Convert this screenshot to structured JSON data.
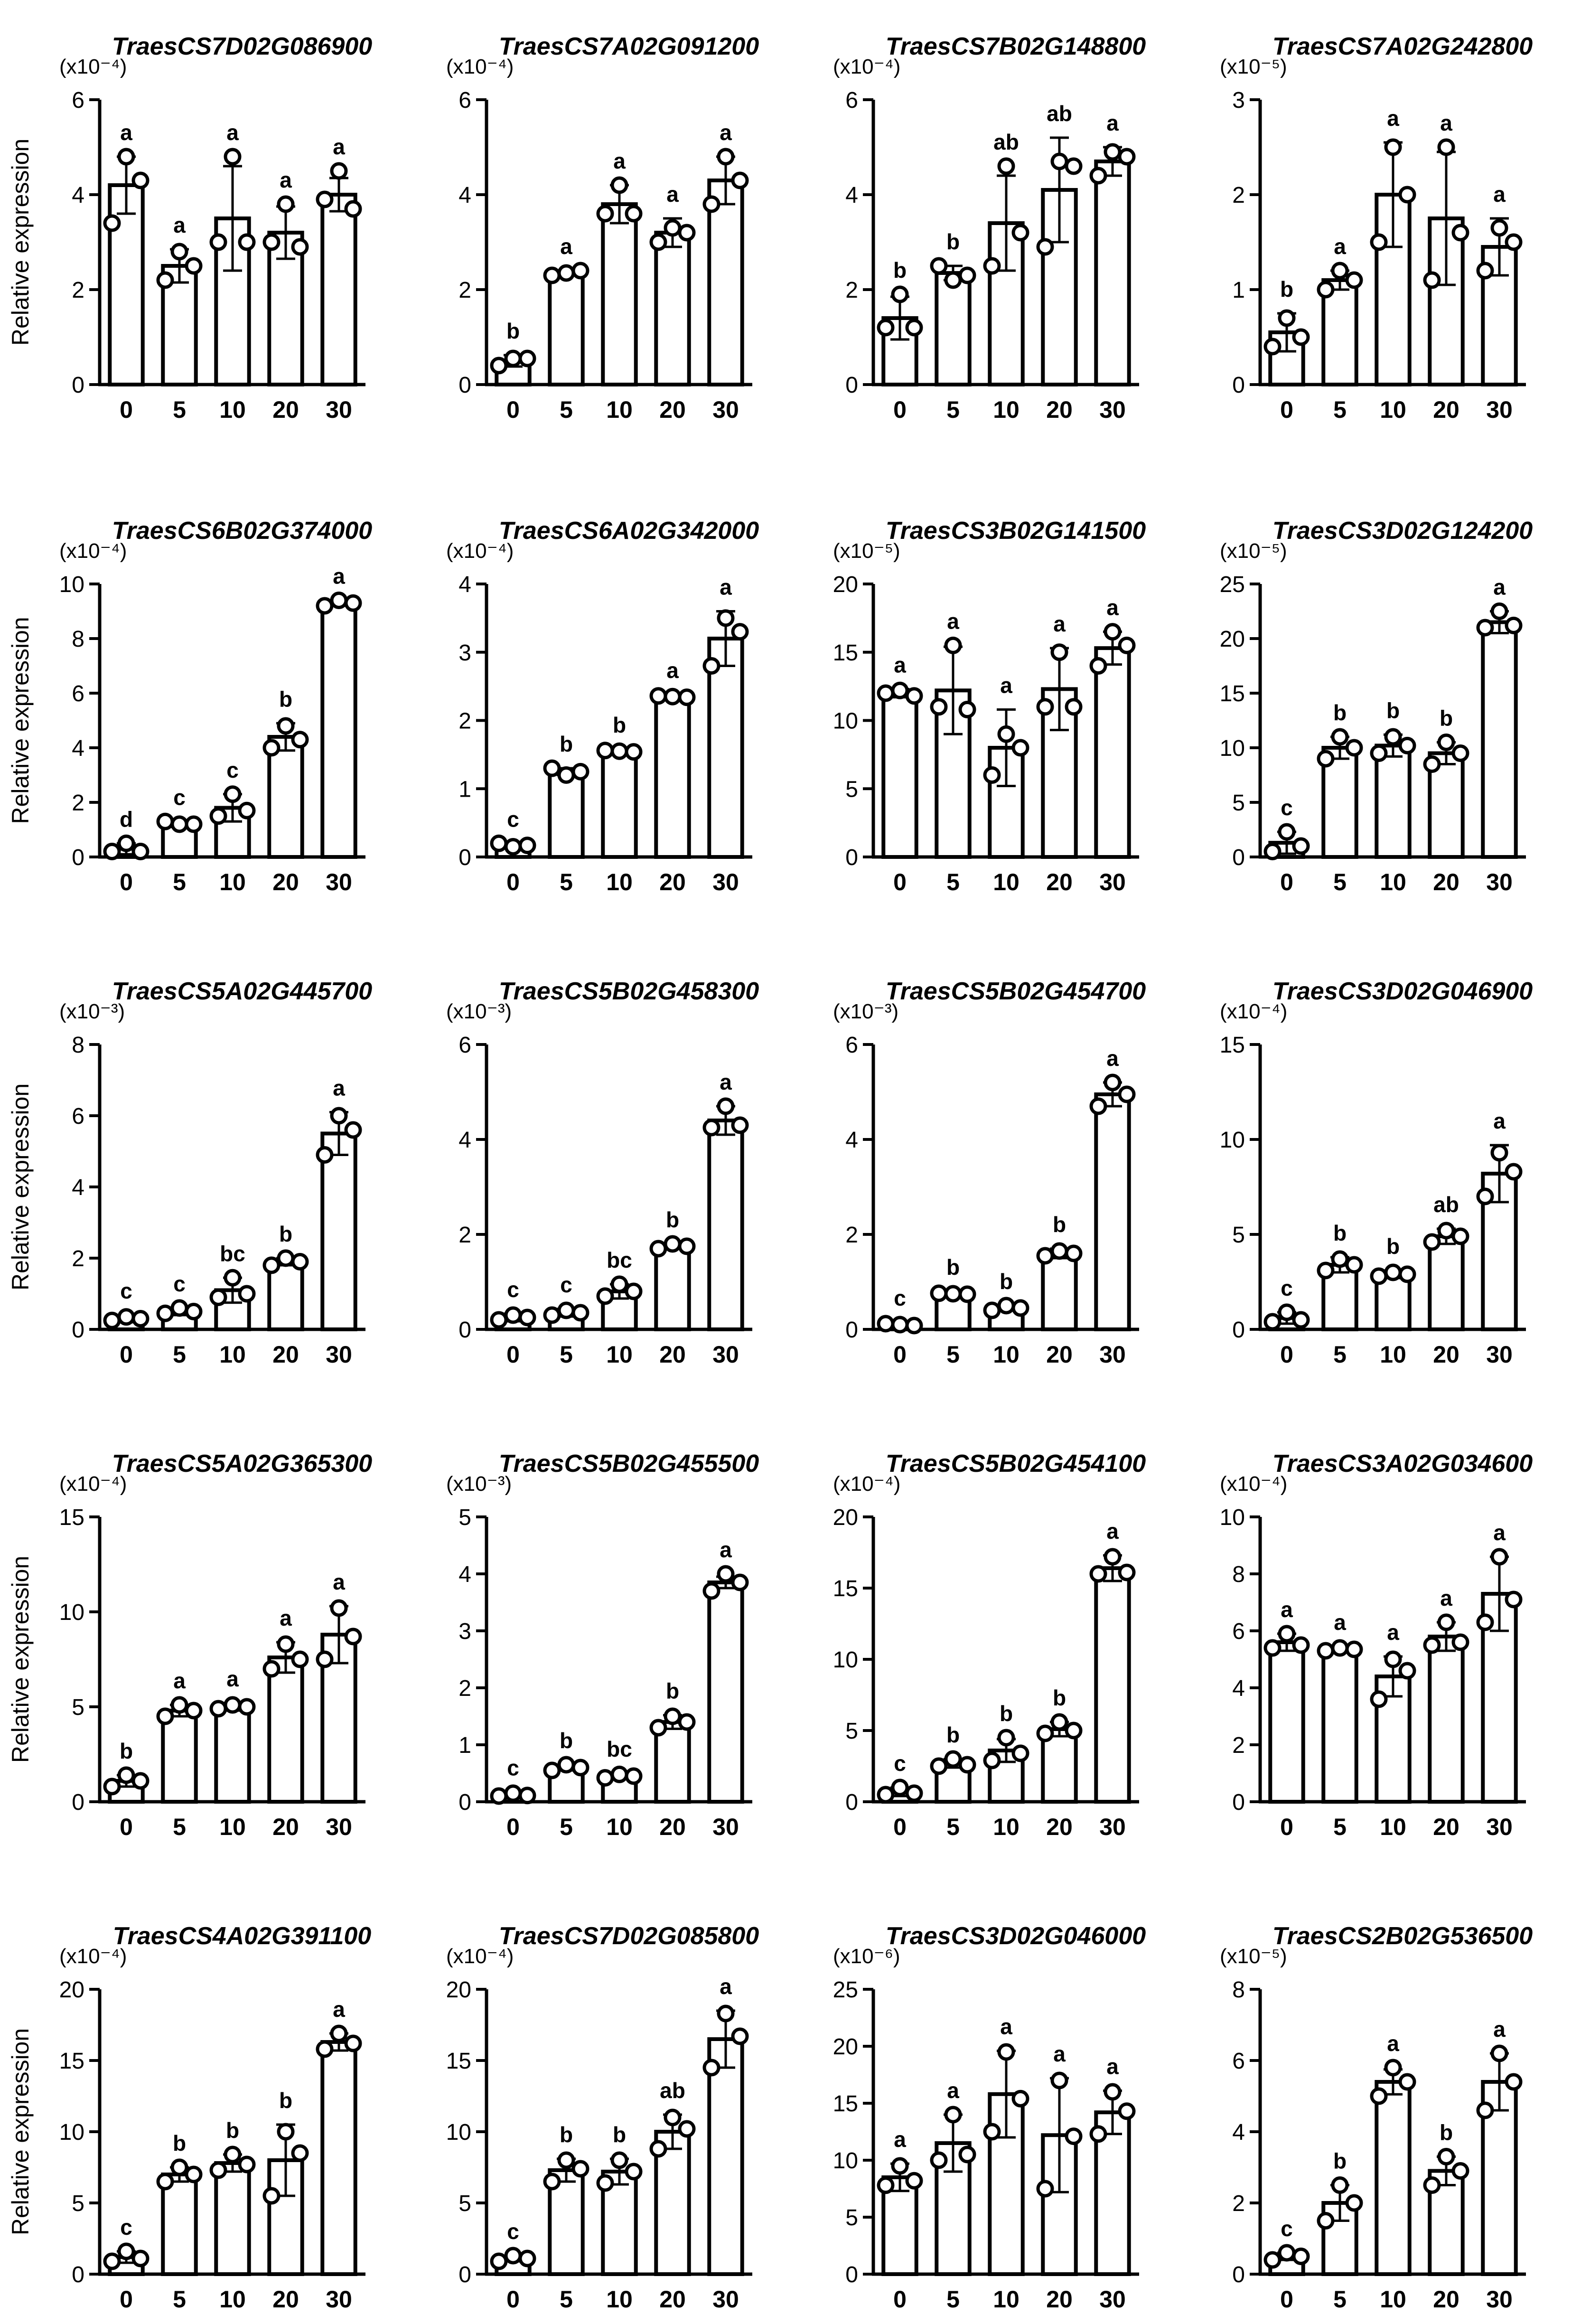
{
  "figure": {
    "ylabel": "Relative expression",
    "colors": {
      "ink": "#000000",
      "bar_fill": "#ffffff",
      "point_fill": "#ffffff"
    }
  },
  "chart_data": [
    {
      "type": "bar",
      "title": "TraesCS7D02G086900",
      "scale": "(x10⁻⁴)",
      "ylabel": "Relative expression",
      "ylim": [
        0,
        6
      ],
      "yticks": [
        0,
        2,
        4,
        6
      ],
      "categories": [
        "0",
        "5",
        "10",
        "20",
        "30"
      ],
      "values": [
        4.2,
        2.5,
        3.5,
        3.2,
        4.0
      ],
      "errors": [
        0.6,
        0.35,
        1.1,
        0.55,
        0.35
      ],
      "points": [
        [
          4.8,
          3.4,
          4.3
        ],
        [
          2.8,
          2.2,
          2.5
        ],
        [
          4.8,
          3.0,
          3.0
        ],
        [
          3.8,
          3.0,
          2.9
        ],
        [
          4.5,
          3.9,
          3.7
        ]
      ],
      "letters": [
        "a",
        "a",
        "a",
        "a",
        "a"
      ]
    },
    {
      "type": "bar",
      "title": "TraesCS7A02G091200",
      "scale": "(x10⁻⁴)",
      "ylabel": "",
      "ylim": [
        0,
        6
      ],
      "yticks": [
        0,
        2,
        4,
        6
      ],
      "categories": [
        "0",
        "5",
        "10",
        "20",
        "30"
      ],
      "values": [
        0.5,
        2.35,
        3.8,
        3.2,
        4.3
      ],
      "errors": [
        0.12,
        0.05,
        0.4,
        0.3,
        0.5
      ],
      "points": [
        [
          0.55,
          0.4,
          0.55
        ],
        [
          2.35,
          2.3,
          2.4
        ],
        [
          4.2,
          3.6,
          3.6
        ],
        [
          3.3,
          3.0,
          3.2
        ],
        [
          4.8,
          3.8,
          4.3
        ]
      ],
      "letters": [
        "b",
        "a",
        "a",
        "a",
        "a"
      ]
    },
    {
      "type": "bar",
      "title": "TraesCS7B02G148800",
      "scale": "(x10⁻⁴)",
      "ylabel": "",
      "ylim": [
        0,
        6
      ],
      "yticks": [
        0,
        2,
        4,
        6
      ],
      "categories": [
        "0",
        "5",
        "10",
        "20",
        "30"
      ],
      "values": [
        1.4,
        2.35,
        3.4,
        4.1,
        4.7
      ],
      "errors": [
        0.45,
        0.15,
        1.0,
        1.1,
        0.3
      ],
      "points": [
        [
          1.9,
          1.2,
          1.2
        ],
        [
          2.2,
          2.5,
          2.3
        ],
        [
          4.6,
          2.5,
          3.2
        ],
        [
          4.7,
          2.9,
          4.6
        ],
        [
          4.9,
          4.4,
          4.8
        ]
      ],
      "letters": [
        "b",
        "b",
        "ab",
        "ab",
        "a"
      ]
    },
    {
      "type": "bar",
      "title": "TraesCS7A02G242800",
      "scale": "(x10⁻⁵)",
      "ylabel": "",
      "ylim": [
        0,
        3
      ],
      "yticks": [
        0,
        1,
        2,
        3
      ],
      "categories": [
        "0",
        "5",
        "10",
        "20",
        "30"
      ],
      "values": [
        0.55,
        1.1,
        2.0,
        1.75,
        1.45
      ],
      "errors": [
        0.2,
        0.1,
        0.55,
        0.7,
        0.3
      ],
      "points": [
        [
          0.7,
          0.4,
          0.5
        ],
        [
          1.2,
          1.0,
          1.1
        ],
        [
          2.5,
          1.5,
          2.0
        ],
        [
          2.5,
          1.1,
          1.6
        ],
        [
          1.65,
          1.2,
          1.5
        ]
      ],
      "letters": [
        "b",
        "a",
        "a",
        "a",
        "a"
      ]
    },
    {
      "type": "bar",
      "title": "TraesCS6B02G374000",
      "scale": "(x10⁻⁴)",
      "ylabel": "Relative expression",
      "ylim": [
        0,
        10
      ],
      "yticks": [
        0,
        2,
        4,
        6,
        8,
        10
      ],
      "categories": [
        "0",
        "5",
        "10",
        "20",
        "30"
      ],
      "values": [
        0.3,
        1.2,
        1.8,
        4.4,
        9.3
      ],
      "errors": [
        0.2,
        0.1,
        0.5,
        0.5,
        0.1
      ],
      "points": [
        [
          0.5,
          0.2,
          0.2
        ],
        [
          1.2,
          1.3,
          1.2
        ],
        [
          2.3,
          1.5,
          1.7
        ],
        [
          4.8,
          4.0,
          4.3
        ],
        [
          9.4,
          9.2,
          9.3
        ]
      ],
      "letters": [
        "d",
        "c",
        "c",
        "b",
        "a"
      ]
    },
    {
      "type": "bar",
      "title": "TraesCS6A02G342000",
      "scale": "(x10⁻⁴)",
      "ylabel": "",
      "ylim": [
        0,
        4
      ],
      "yticks": [
        0,
        1,
        2,
        3,
        4
      ],
      "categories": [
        "0",
        "5",
        "10",
        "20",
        "30"
      ],
      "values": [
        0.17,
        1.25,
        1.55,
        2.35,
        3.2
      ],
      "errors": [
        0.03,
        0.05,
        0.03,
        0.03,
        0.4
      ],
      "points": [
        [
          0.15,
          0.2,
          0.17
        ],
        [
          1.2,
          1.3,
          1.25
        ],
        [
          1.55,
          1.56,
          1.54
        ],
        [
          2.35,
          2.36,
          2.34
        ],
        [
          3.5,
          2.8,
          3.3
        ]
      ],
      "letters": [
        "c",
        "b",
        "b",
        "a",
        "a"
      ]
    },
    {
      "type": "bar",
      "title": "TraesCS3B02G141500",
      "scale": "(x10⁻⁵)",
      "ylabel": "",
      "ylim": [
        0,
        20
      ],
      "yticks": [
        0,
        5,
        10,
        15,
        20
      ],
      "categories": [
        "0",
        "5",
        "10",
        "20",
        "30"
      ],
      "values": [
        12.0,
        12.2,
        8.0,
        12.3,
        15.3
      ],
      "errors": [
        0.3,
        3.2,
        2.8,
        3.0,
        1.2
      ],
      "points": [
        [
          12.2,
          12.0,
          11.8
        ],
        [
          15.5,
          11.0,
          10.8
        ],
        [
          9.0,
          6.0,
          8.0
        ],
        [
          15.0,
          11.0,
          11.0
        ],
        [
          16.5,
          14.0,
          15.5
        ]
      ],
      "letters": [
        "a",
        "a",
        "a",
        "a",
        "a"
      ]
    },
    {
      "type": "bar",
      "title": "TraesCS3D02G124200",
      "scale": "(x10⁻⁵)",
      "ylabel": "",
      "ylim": [
        0,
        25
      ],
      "yticks": [
        0,
        5,
        10,
        15,
        20,
        25
      ],
      "categories": [
        "0",
        "5",
        "10",
        "20",
        "30"
      ],
      "values": [
        1.3,
        10.0,
        10.2,
        9.5,
        21.5
      ],
      "errors": [
        1.0,
        1.0,
        1.0,
        1.0,
        1.0
      ],
      "points": [
        [
          2.3,
          0.5,
          1.0
        ],
        [
          11.0,
          9.0,
          10.0
        ],
        [
          11.0,
          9.5,
          10.2
        ],
        [
          10.5,
          8.5,
          9.5
        ],
        [
          22.5,
          21.0,
          21.2
        ]
      ],
      "letters": [
        "c",
        "b",
        "b",
        "b",
        "a"
      ]
    },
    {
      "type": "bar",
      "title": "TraesCS5A02G445700",
      "scale": "(x10⁻³)",
      "ylabel": "Relative expression",
      "ylim": [
        0,
        8
      ],
      "yticks": [
        0,
        2,
        4,
        6,
        8
      ],
      "categories": [
        "0",
        "5",
        "10",
        "20",
        "30"
      ],
      "values": [
        0.3,
        0.5,
        1.1,
        1.9,
        5.5
      ],
      "errors": [
        0.1,
        0.1,
        0.35,
        0.1,
        0.6
      ],
      "points": [
        [
          0.35,
          0.25,
          0.3
        ],
        [
          0.6,
          0.45,
          0.5
        ],
        [
          1.45,
          0.9,
          1.0
        ],
        [
          2.0,
          1.8,
          1.9
        ],
        [
          6.0,
          4.9,
          5.6
        ]
      ],
      "letters": [
        "c",
        "c",
        "bc",
        "b",
        "a"
      ]
    },
    {
      "type": "bar",
      "title": "TraesCS5B02G458300",
      "scale": "(x10⁻³)",
      "ylabel": "",
      "ylim": [
        0,
        6
      ],
      "yticks": [
        0,
        2,
        4,
        6
      ],
      "categories": [
        "0",
        "5",
        "10",
        "20",
        "30"
      ],
      "values": [
        0.25,
        0.35,
        0.8,
        1.75,
        4.4
      ],
      "errors": [
        0.08,
        0.08,
        0.15,
        0.05,
        0.3
      ],
      "points": [
        [
          0.3,
          0.2,
          0.25
        ],
        [
          0.4,
          0.3,
          0.35
        ],
        [
          0.95,
          0.7,
          0.8
        ],
        [
          1.8,
          1.7,
          1.75
        ],
        [
          4.7,
          4.25,
          4.3
        ]
      ],
      "letters": [
        "c",
        "c",
        "bc",
        "b",
        "a"
      ]
    },
    {
      "type": "bar",
      "title": "TraesCS5B02G454700",
      "scale": "(x10⁻³)",
      "ylabel": "",
      "ylim": [
        0,
        6
      ],
      "yticks": [
        0,
        2,
        4,
        6
      ],
      "categories": [
        "0",
        "5",
        "10",
        "20",
        "30"
      ],
      "values": [
        0.1,
        0.75,
        0.45,
        1.6,
        4.95
      ],
      "errors": [
        0.05,
        0.05,
        0.05,
        0.1,
        0.25
      ],
      "points": [
        [
          0.1,
          0.12,
          0.08
        ],
        [
          0.75,
          0.76,
          0.74
        ],
        [
          0.5,
          0.4,
          0.45
        ],
        [
          1.65,
          1.55,
          1.6
        ],
        [
          5.2,
          4.7,
          4.95
        ]
      ],
      "letters": [
        "c",
        "b",
        "b",
        "b",
        "a"
      ]
    },
    {
      "type": "bar",
      "title": "TraesCS3D02G046900",
      "scale": "(x10⁻⁴)",
      "ylabel": "",
      "ylim": [
        0,
        15
      ],
      "yticks": [
        0,
        5,
        10,
        15
      ],
      "categories": [
        "0",
        "5",
        "10",
        "20",
        "30"
      ],
      "values": [
        0.6,
        3.4,
        2.9,
        4.9,
        8.2
      ],
      "errors": [
        0.3,
        0.4,
        0.2,
        0.4,
        1.5
      ],
      "points": [
        [
          0.9,
          0.4,
          0.5
        ],
        [
          3.7,
          3.1,
          3.4
        ],
        [
          3.0,
          2.8,
          2.9
        ],
        [
          5.2,
          4.6,
          4.9
        ],
        [
          9.3,
          7.0,
          8.3
        ]
      ],
      "letters": [
        "c",
        "b",
        "b",
        "ab",
        "a"
      ]
    },
    {
      "type": "bar",
      "title": "TraesCS5A02G365300",
      "scale": "(x10⁻⁴)",
      "ylabel": "Relative expression",
      "ylim": [
        0,
        15
      ],
      "yticks": [
        0,
        5,
        10,
        15
      ],
      "categories": [
        "0",
        "5",
        "10",
        "20",
        "30"
      ],
      "values": [
        1.1,
        4.8,
        5.0,
        7.6,
        8.8
      ],
      "errors": [
        0.3,
        0.3,
        0.2,
        0.8,
        1.5
      ],
      "points": [
        [
          1.4,
          0.8,
          1.1
        ],
        [
          5.1,
          4.5,
          4.8
        ],
        [
          5.1,
          4.9,
          5.0
        ],
        [
          8.3,
          7.0,
          7.5
        ],
        [
          10.2,
          7.5,
          8.7
        ]
      ],
      "letters": [
        "b",
        "a",
        "a",
        "a",
        "a"
      ]
    },
    {
      "type": "bar",
      "title": "TraesCS5B02G455500",
      "scale": "(x10⁻³)",
      "ylabel": "",
      "ylim": [
        0,
        5
      ],
      "yticks": [
        0,
        1,
        2,
        3,
        4,
        5
      ],
      "categories": [
        "0",
        "5",
        "10",
        "20",
        "30"
      ],
      "values": [
        0.12,
        0.6,
        0.45,
        1.4,
        3.85
      ],
      "errors": [
        0.05,
        0.05,
        0.05,
        0.12,
        0.1
      ],
      "points": [
        [
          0.15,
          0.1,
          0.11
        ],
        [
          0.65,
          0.55,
          0.6
        ],
        [
          0.48,
          0.42,
          0.45
        ],
        [
          1.5,
          1.3,
          1.4
        ],
        [
          4.0,
          3.7,
          3.85
        ]
      ],
      "letters": [
        "c",
        "b",
        "bc",
        "b",
        "a"
      ]
    },
    {
      "type": "bar",
      "title": "TraesCS5B02G454100",
      "scale": "(x10⁻⁴)",
      "ylabel": "",
      "ylim": [
        0,
        20
      ],
      "yticks": [
        0,
        5,
        10,
        15,
        20
      ],
      "categories": [
        "0",
        "5",
        "10",
        "20",
        "30"
      ],
      "values": [
        0.7,
        2.7,
        3.6,
        5.1,
        16.4
      ],
      "errors": [
        0.3,
        0.3,
        0.8,
        0.5,
        0.9
      ],
      "points": [
        [
          1.0,
          0.5,
          0.6
        ],
        [
          3.0,
          2.5,
          2.6
        ],
        [
          4.5,
          2.9,
          3.4
        ],
        [
          5.6,
          4.8,
          5.0
        ],
        [
          17.2,
          16.0,
          16.1
        ]
      ],
      "letters": [
        "c",
        "b",
        "b",
        "b",
        "a"
      ]
    },
    {
      "type": "bar",
      "title": "TraesCS3A02G034600",
      "scale": "(x10⁻⁴)",
      "ylabel": "",
      "ylim": [
        0,
        10
      ],
      "yticks": [
        0,
        2,
        4,
        6,
        8,
        10
      ],
      "categories": [
        "0",
        "5",
        "10",
        "20",
        "30"
      ],
      "values": [
        5.6,
        5.35,
        4.4,
        5.8,
        7.3
      ],
      "errors": [
        0.3,
        0.1,
        0.7,
        0.5,
        1.3
      ],
      "points": [
        [
          5.9,
          5.4,
          5.5
        ],
        [
          5.4,
          5.3,
          5.35
        ],
        [
          5.0,
          3.6,
          4.6
        ],
        [
          6.3,
          5.5,
          5.6
        ],
        [
          8.6,
          6.3,
          7.1
        ]
      ],
      "letters": [
        "a",
        "a",
        "a",
        "a",
        "a"
      ]
    },
    {
      "type": "bar",
      "title": "TraesCS4A02G391100",
      "scale": "(x10⁻⁴)",
      "ylabel": "Relative expression",
      "ylim": [
        0,
        20
      ],
      "yticks": [
        0,
        5,
        10,
        15,
        20
      ],
      "categories": [
        "0",
        "5",
        "10",
        "20",
        "30"
      ],
      "values": [
        1.2,
        7.0,
        7.8,
        8.0,
        16.3
      ],
      "errors": [
        0.4,
        0.5,
        0.6,
        2.5,
        0.6
      ],
      "points": [
        [
          1.6,
          0.9,
          1.1
        ],
        [
          7.5,
          6.5,
          7.0
        ],
        [
          8.4,
          7.3,
          7.7
        ],
        [
          10.0,
          5.5,
          8.5
        ],
        [
          16.9,
          15.8,
          16.2
        ]
      ],
      "letters": [
        "c",
        "b",
        "b",
        "b",
        "a"
      ]
    },
    {
      "type": "bar",
      "title": "TraesCS7D02G085800",
      "scale": "(x10⁻⁴)",
      "ylabel": "",
      "ylim": [
        0,
        20
      ],
      "yticks": [
        0,
        5,
        10,
        15,
        20
      ],
      "categories": [
        "0",
        "5",
        "10",
        "20",
        "30"
      ],
      "values": [
        1.1,
        7.3,
        7.2,
        10.0,
        16.5
      ],
      "errors": [
        0.2,
        0.8,
        0.9,
        1.2,
        2.0
      ],
      "points": [
        [
          1.3,
          0.9,
          1.1
        ],
        [
          8.0,
          6.5,
          7.4
        ],
        [
          8.0,
          6.4,
          7.2
        ],
        [
          11.0,
          8.8,
          10.2
        ],
        [
          18.3,
          14.5,
          16.7
        ]
      ],
      "letters": [
        "c",
        "b",
        "b",
        "ab",
        "a"
      ]
    },
    {
      "type": "bar",
      "title": "TraesCS3D02G046000",
      "scale": "(x10⁻⁶)",
      "ylabel": "",
      "ylim": [
        0,
        25
      ],
      "yticks": [
        0,
        5,
        10,
        15,
        20,
        25
      ],
      "categories": [
        "0",
        "5",
        "10",
        "20",
        "30"
      ],
      "values": [
        8.5,
        11.5,
        15.8,
        12.2,
        14.2
      ],
      "errors": [
        1.2,
        2.5,
        3.8,
        5.0,
        1.9
      ],
      "points": [
        [
          9.5,
          7.8,
          8.2
        ],
        [
          14.0,
          10.0,
          10.5
        ],
        [
          19.5,
          12.5,
          15.4
        ],
        [
          17.0,
          7.5,
          12.1
        ],
        [
          16.0,
          12.3,
          14.3
        ]
      ],
      "letters": [
        "a",
        "a",
        "a",
        "a",
        "a"
      ]
    },
    {
      "type": "bar",
      "title": "TraesCS2B02G536500",
      "scale": "(x10⁻⁵)",
      "ylabel": "",
      "ylim": [
        0,
        8
      ],
      "yticks": [
        0,
        2,
        4,
        6,
        8
      ],
      "categories": [
        "0",
        "5",
        "10",
        "20",
        "30"
      ],
      "values": [
        0.5,
        2.0,
        5.4,
        2.9,
        5.4
      ],
      "errors": [
        0.1,
        0.5,
        0.35,
        0.4,
        0.8
      ],
      "points": [
        [
          0.6,
          0.4,
          0.5
        ],
        [
          2.5,
          1.5,
          2.0
        ],
        [
          5.8,
          5.0,
          5.4
        ],
        [
          3.3,
          2.5,
          2.9
        ],
        [
          6.2,
          4.6,
          5.4
        ]
      ],
      "letters": [
        "c",
        "b",
        "a",
        "b",
        "a"
      ]
    }
  ]
}
